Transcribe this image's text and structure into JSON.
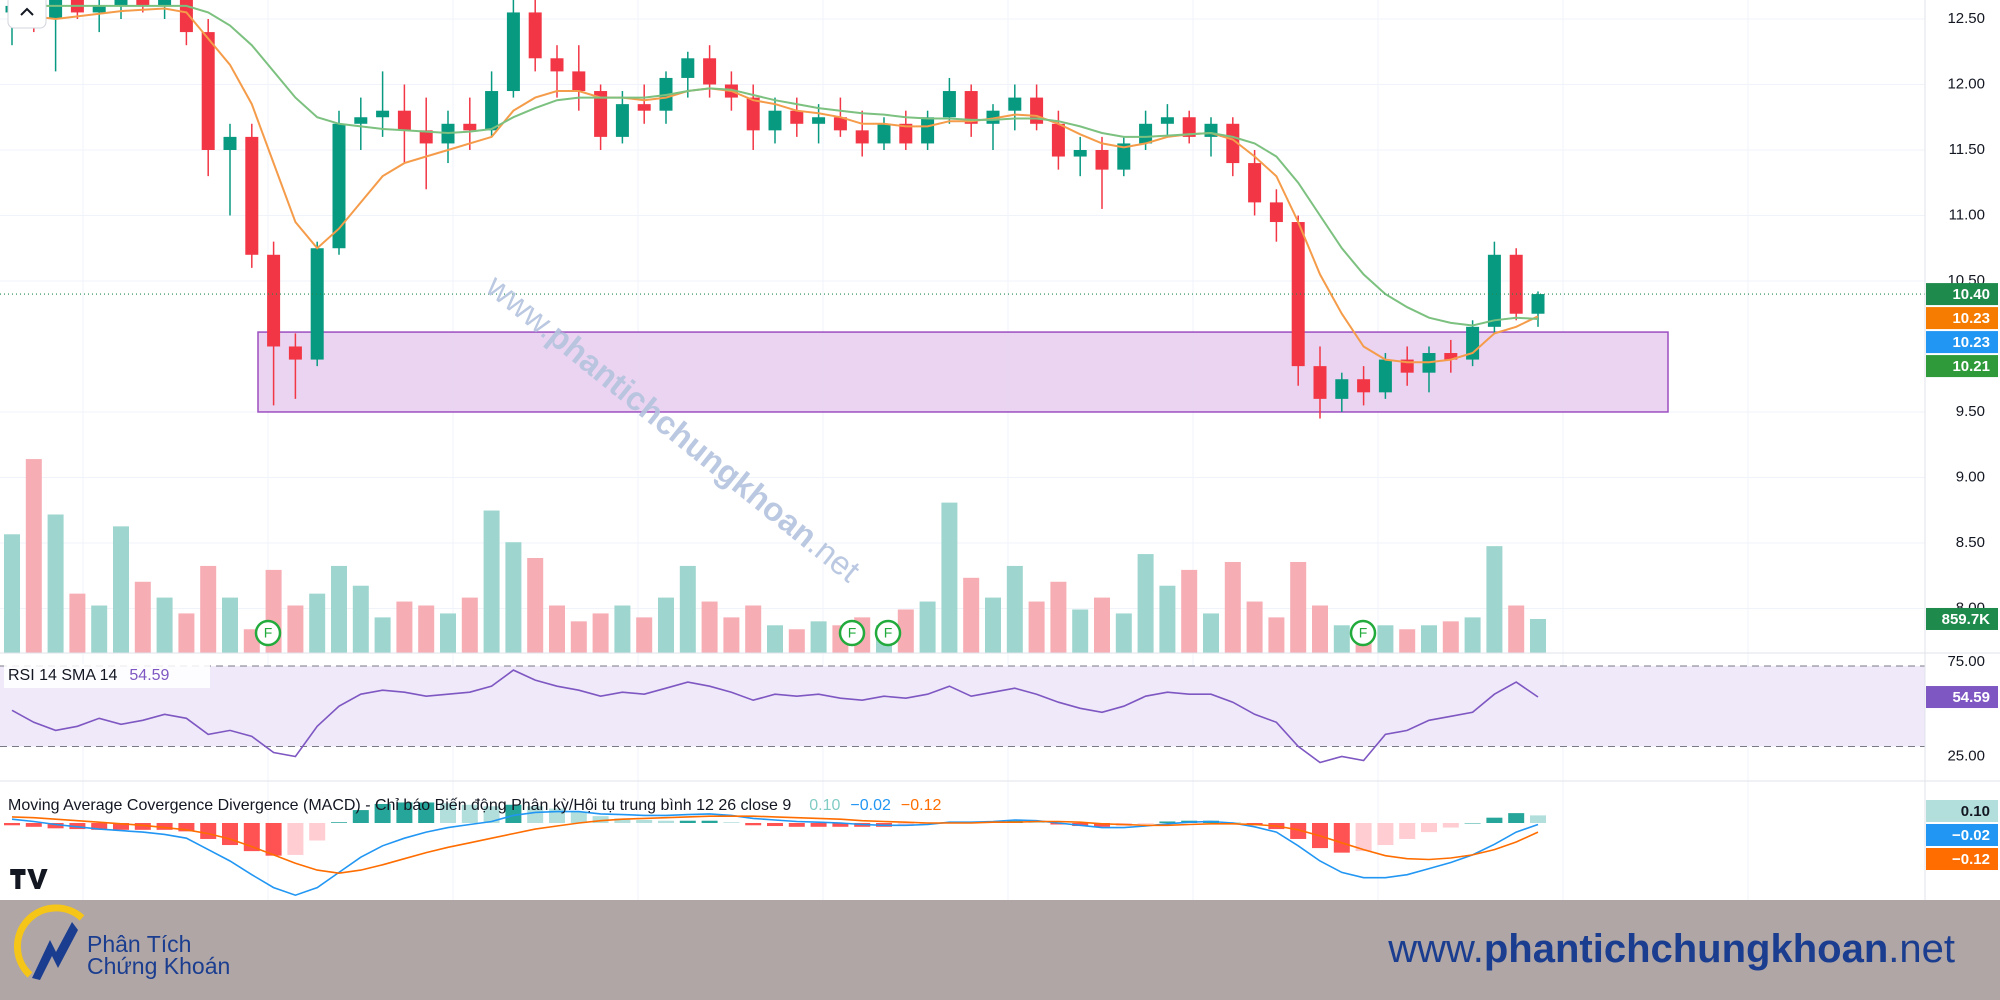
{
  "chart_data": {
    "type": "candlestick",
    "ylim": [
      7.66,
      12.645
    ],
    "yticks": [
      {
        "value": 12.5,
        "label": "12.50"
      },
      {
        "value": 12,
        "label": "12.00"
      },
      {
        "value": 11.5,
        "label": "11.50"
      },
      {
        "value": 11,
        "label": "11.00"
      },
      {
        "value": 10.5,
        "label": "10.50"
      },
      {
        "value": 9.5,
        "label": "9.50"
      },
      {
        "value": 9,
        "label": "9.00"
      },
      {
        "value": 8.5,
        "label": "8.50"
      },
      {
        "value": 8,
        "label": "8.00"
      }
    ],
    "grid": true,
    "colors": {
      "up": "#089981",
      "down": "#f23645"
    },
    "candles": [
      [
        12.55,
        12.7,
        12.3,
        12.6
      ],
      [
        12.6,
        12.75,
        12.4,
        12.5
      ],
      [
        12.5,
        12.7,
        12.1,
        12.65
      ],
      [
        12.65,
        12.8,
        12.5,
        12.55
      ],
      [
        12.55,
        12.7,
        12.4,
        12.6
      ],
      [
        12.6,
        12.8,
        12.5,
        12.7
      ],
      [
        12.7,
        12.8,
        12.55,
        12.6
      ],
      [
        12.6,
        12.75,
        12.5,
        12.65
      ],
      [
        12.65,
        12.8,
        12.3,
        12.4
      ],
      [
        12.4,
        12.5,
        11.3,
        11.5
      ],
      [
        11.5,
        11.7,
        11.0,
        11.6
      ],
      [
        11.6,
        11.7,
        10.6,
        10.7
      ],
      [
        10.7,
        10.8,
        9.55,
        10.0
      ],
      [
        10.0,
        10.1,
        9.6,
        9.9
      ],
      [
        9.9,
        10.8,
        9.85,
        10.75
      ],
      [
        10.75,
        11.8,
        10.7,
        11.7
      ],
      [
        11.7,
        11.9,
        11.5,
        11.75
      ],
      [
        11.75,
        12.1,
        11.6,
        11.8
      ],
      [
        11.8,
        12.0,
        11.4,
        11.65
      ],
      [
        11.65,
        11.9,
        11.2,
        11.55
      ],
      [
        11.55,
        11.8,
        11.4,
        11.7
      ],
      [
        11.7,
        11.9,
        11.5,
        11.65
      ],
      [
        11.65,
        12.1,
        11.6,
        11.95
      ],
      [
        11.95,
        12.7,
        11.9,
        12.55
      ],
      [
        12.55,
        12.7,
        12.1,
        12.2
      ],
      [
        12.2,
        12.3,
        11.9,
        12.1
      ],
      [
        12.1,
        12.3,
        11.8,
        11.95
      ],
      [
        11.95,
        12.0,
        11.5,
        11.6
      ],
      [
        11.6,
        11.95,
        11.55,
        11.85
      ],
      [
        11.85,
        12.0,
        11.7,
        11.8
      ],
      [
        11.8,
        12.1,
        11.7,
        12.05
      ],
      [
        12.05,
        12.25,
        11.9,
        12.2
      ],
      [
        12.2,
        12.3,
        11.9,
        12.0
      ],
      [
        12.0,
        12.1,
        11.8,
        11.9
      ],
      [
        11.9,
        12.0,
        11.5,
        11.65
      ],
      [
        11.65,
        11.9,
        11.55,
        11.8
      ],
      [
        11.8,
        11.9,
        11.6,
        11.7
      ],
      [
        11.7,
        11.85,
        11.55,
        11.75
      ],
      [
        11.75,
        11.9,
        11.6,
        11.65
      ],
      [
        11.65,
        11.8,
        11.45,
        11.55
      ],
      [
        11.55,
        11.75,
        11.5,
        11.7
      ],
      [
        11.7,
        11.8,
        11.5,
        11.55
      ],
      [
        11.55,
        11.8,
        11.5,
        11.75
      ],
      [
        11.75,
        12.05,
        11.7,
        11.95
      ],
      [
        11.95,
        12.0,
        11.6,
        11.7
      ],
      [
        11.7,
        11.85,
        11.5,
        11.8
      ],
      [
        11.8,
        12.0,
        11.65,
        11.9
      ],
      [
        11.9,
        12.0,
        11.65,
        11.7
      ],
      [
        11.7,
        11.8,
        11.35,
        11.45
      ],
      [
        11.45,
        11.6,
        11.3,
        11.5
      ],
      [
        11.5,
        11.6,
        11.05,
        11.35
      ],
      [
        11.35,
        11.6,
        11.3,
        11.55
      ],
      [
        11.55,
        11.8,
        11.5,
        11.7
      ],
      [
        11.7,
        11.85,
        11.6,
        11.75
      ],
      [
        11.75,
        11.8,
        11.55,
        11.6
      ],
      [
        11.6,
        11.75,
        11.45,
        11.7
      ],
      [
        11.7,
        11.75,
        11.3,
        11.4
      ],
      [
        11.4,
        11.5,
        11.0,
        11.1
      ],
      [
        11.1,
        11.2,
        10.8,
        10.95
      ],
      [
        10.95,
        11.0,
        9.7,
        9.85
      ],
      [
        9.85,
        10.0,
        9.45,
        9.6
      ],
      [
        9.6,
        9.8,
        9.5,
        9.75
      ],
      [
        9.75,
        9.85,
        9.55,
        9.65
      ],
      [
        9.65,
        9.95,
        9.6,
        9.9
      ],
      [
        9.9,
        10.0,
        9.7,
        9.8
      ],
      [
        9.8,
        10.0,
        9.65,
        9.95
      ],
      [
        9.95,
        10.05,
        9.8,
        9.9
      ],
      [
        9.9,
        10.2,
        9.85,
        10.15
      ],
      [
        10.15,
        10.8,
        10.1,
        10.7
      ],
      [
        10.7,
        10.75,
        10.2,
        10.25
      ],
      [
        10.25,
        10.42,
        10.15,
        10.4
      ]
    ],
    "moving_averages": [
      {
        "color": "#f59c4a",
        "values": [
          12.5,
          12.52,
          12.5,
          12.52,
          12.54,
          12.56,
          12.57,
          12.58,
          12.55,
          12.35,
          12.15,
          11.85,
          11.4,
          10.95,
          10.75,
          10.9,
          11.1,
          11.3,
          11.4,
          11.45,
          11.5,
          11.55,
          11.6,
          11.8,
          11.9,
          11.95,
          11.95,
          11.9,
          11.9,
          11.88,
          11.9,
          11.95,
          11.97,
          11.95,
          11.88,
          11.85,
          11.8,
          11.78,
          11.75,
          11.7,
          11.7,
          11.68,
          11.68,
          11.72,
          11.72,
          11.74,
          11.77,
          11.76,
          11.7,
          11.62,
          11.55,
          11.52,
          11.55,
          11.6,
          11.62,
          11.63,
          11.58,
          11.45,
          11.3,
          10.95,
          10.55,
          10.25,
          10.0,
          9.9,
          9.88,
          9.88,
          9.9,
          9.95,
          10.1,
          10.15,
          10.23
        ]
      },
      {
        "color": "#7cc17f",
        "values": [
          12.6,
          12.6,
          12.6,
          12.6,
          12.6,
          12.6,
          12.6,
          12.6,
          12.6,
          12.55,
          12.45,
          12.3,
          12.1,
          11.9,
          11.75,
          11.7,
          11.68,
          11.66,
          11.65,
          11.64,
          11.63,
          11.64,
          11.66,
          11.75,
          11.82,
          11.88,
          11.9,
          11.9,
          11.9,
          11.9,
          11.92,
          11.95,
          11.97,
          11.96,
          11.92,
          11.88,
          11.85,
          11.82,
          11.8,
          11.78,
          11.77,
          11.75,
          11.74,
          11.74,
          11.73,
          11.73,
          11.74,
          11.74,
          11.72,
          11.68,
          11.63,
          11.6,
          11.6,
          11.61,
          11.62,
          11.63,
          11.6,
          11.55,
          11.45,
          11.25,
          11.0,
          10.75,
          10.55,
          10.4,
          10.3,
          10.22,
          10.18,
          10.16,
          10.2,
          10.22,
          10.21
        ]
      }
    ],
    "zone": {
      "low": 9.5,
      "high": 10.11,
      "fill": "#e6cdef",
      "stroke": "#9c4fc0"
    },
    "price_labels": [
      {
        "value": 10.4,
        "label": "10.40",
        "color": "#1e8a4c"
      },
      {
        "value": 10.23,
        "label": "10.23",
        "color": "#f57c00"
      },
      {
        "value": 10.23,
        "label": "10.23",
        "color": "#2196f3"
      },
      {
        "value": 10.21,
        "label": "10.21",
        "color": "#2e9a3a"
      }
    ],
    "volume": {
      "ylim": [
        0,
        16500000
      ],
      "colors": {
        "up": "#9ed6cf",
        "down": "#f6adb4"
      },
      "last_label": "859.7K",
      "label_color": "#1e8a4c",
      "values": [
        3000000,
        4900000,
        3500000,
        1500000,
        1200000,
        3200000,
        1800000,
        1400000,
        1000000,
        2200000,
        1400000,
        600000,
        2100000,
        1200000,
        1500000,
        2200000,
        1700000,
        900000,
        1300000,
        1200000,
        1000000,
        1400000,
        3600000,
        2800000,
        2400000,
        1200000,
        800000,
        1000000,
        1200000,
        900000,
        1400000,
        2200000,
        1300000,
        900000,
        1200000,
        700000,
        600000,
        800000,
        700000,
        900000,
        700000,
        1100000,
        1300000,
        3800000,
        1900000,
        1400000,
        2200000,
        1300000,
        1800000,
        1100000,
        1400000,
        1000000,
        2500000,
        1700000,
        2100000,
        1000000,
        2300000,
        1300000,
        900000,
        2300000,
        1200000,
        700000,
        600000,
        700000,
        600000,
        700000,
        800000,
        900000,
        2700000,
        1200000,
        859700
      ]
    },
    "event_label": "F",
    "rsi": {
      "title": "RSI 14 SMA 14",
      "value_label": "54.59",
      "color": "#7e57c2",
      "band_fill": "#efe9f9",
      "ylim": [
        12.8,
        76.5
      ],
      "yticks": [
        {
          "value": 75,
          "label": "75.00"
        },
        {
          "value": 25,
          "label": "25.00"
        }
      ],
      "bands": [
        70,
        30
      ],
      "values": [
        48,
        42,
        38,
        40,
        44,
        41,
        43,
        46,
        44,
        36,
        38,
        35,
        27,
        25,
        40,
        50,
        56,
        58,
        57,
        55,
        56,
        57,
        60,
        68,
        63,
        60,
        58,
        55,
        57,
        56,
        59,
        62,
        60,
        57,
        53,
        56,
        55,
        56,
        54,
        53,
        55,
        54,
        56,
        60,
        55,
        57,
        59,
        56,
        52,
        49,
        47,
        50,
        55,
        57,
        56,
        56,
        52,
        46,
        42,
        30,
        22,
        25,
        23,
        36,
        38,
        43,
        45,
        47,
        56,
        62,
        54.59
      ]
    },
    "macd": {
      "title": "Moving Average Covergence Divergence (MACD) - Chỉ báo Biến động Phân kỳ/Hội tụ trung bình 12 26 close 9",
      "ylim": [
        -1.013,
        0.513
      ],
      "histogram": {
        "label": "0.10",
        "colors": {
          "up_rising": "#26a69a",
          "up_falling": "#b2dfdb",
          "down_falling": "#ff5252",
          "down_rising": "#ffcdd2"
        },
        "label_color": "#b2dfdb",
        "values": [
          -0.03,
          -0.05,
          -0.07,
          -0.08,
          -0.09,
          -0.09,
          -0.09,
          -0.09,
          -0.11,
          -0.21,
          -0.29,
          -0.37,
          -0.43,
          -0.42,
          -0.23,
          0.01,
          0.17,
          0.25,
          0.27,
          0.27,
          0.26,
          0.24,
          0.22,
          0.24,
          0.22,
          0.19,
          0.15,
          0.09,
          0.06,
          0.04,
          0.03,
          0.03,
          0.03,
          0.01,
          -0.03,
          -0.04,
          -0.05,
          -0.05,
          -0.05,
          -0.05,
          -0.05,
          -0.04,
          -0.02,
          0.01,
          0.01,
          0.01,
          0.03,
          0.01,
          -0.02,
          -0.04,
          -0.05,
          -0.04,
          -0.01,
          0.02,
          0.03,
          0.03,
          0.01,
          -0.03,
          -0.08,
          -0.21,
          -0.33,
          -0.39,
          -0.37,
          -0.29,
          -0.21,
          -0.12,
          -0.06,
          0.0,
          0.07,
          0.13,
          0.1
        ]
      },
      "macd": {
        "label": "−0.02",
        "color": "#2196f3",
        "values": [
          0.05,
          0.02,
          -0.02,
          -0.05,
          -0.08,
          -0.1,
          -0.12,
          -0.15,
          -0.2,
          -0.35,
          -0.5,
          -0.68,
          -0.85,
          -0.95,
          -0.85,
          -0.65,
          -0.45,
          -0.3,
          -0.2,
          -0.12,
          -0.06,
          -0.02,
          0.02,
          0.1,
          0.14,
          0.15,
          0.15,
          0.12,
          0.11,
          0.1,
          0.1,
          0.11,
          0.12,
          0.1,
          0.06,
          0.04,
          0.02,
          0.01,
          0.0,
          -0.02,
          -0.03,
          -0.03,
          -0.02,
          0.01,
          0.01,
          0.02,
          0.04,
          0.03,
          0.0,
          -0.03,
          -0.06,
          -0.06,
          -0.04,
          -0.01,
          0.01,
          0.02,
          0.0,
          -0.05,
          -0.12,
          -0.3,
          -0.5,
          -0.65,
          -0.72,
          -0.72,
          -0.68,
          -0.6,
          -0.52,
          -0.42,
          -0.28,
          -0.12,
          -0.02
        ]
      },
      "signal": {
        "label": "−0.12",
        "color": "#ff6d00",
        "values": [
          0.08,
          0.07,
          0.05,
          0.03,
          0.01,
          -0.01,
          -0.03,
          -0.06,
          -0.09,
          -0.14,
          -0.21,
          -0.31,
          -0.42,
          -0.53,
          -0.62,
          -0.66,
          -0.62,
          -0.55,
          -0.47,
          -0.39,
          -0.32,
          -0.26,
          -0.2,
          -0.14,
          -0.08,
          -0.04,
          0.0,
          0.03,
          0.05,
          0.06,
          0.07,
          0.08,
          0.09,
          0.09,
          0.09,
          0.08,
          0.07,
          0.06,
          0.05,
          0.03,
          0.02,
          0.01,
          0.0,
          0.0,
          0.0,
          0.01,
          0.01,
          0.02,
          0.02,
          0.01,
          -0.01,
          -0.02,
          -0.03,
          -0.03,
          -0.02,
          -0.01,
          -0.01,
          -0.02,
          -0.04,
          -0.09,
          -0.17,
          -0.26,
          -0.35,
          -0.43,
          -0.47,
          -0.48,
          -0.46,
          -0.42,
          -0.35,
          -0.25,
          -0.12
        ]
      }
    }
  },
  "watermark": {
    "prefix": "www.",
    "name": "phantichchungkhoan",
    "suffix": ".net"
  },
  "banner": {
    "logo_line1": "Phân Tích",
    "logo_line2": "Chứng Khoán",
    "url_prefix": "www.",
    "url_name": "phantichchungkhoan",
    "url_suffix": ".net"
  }
}
